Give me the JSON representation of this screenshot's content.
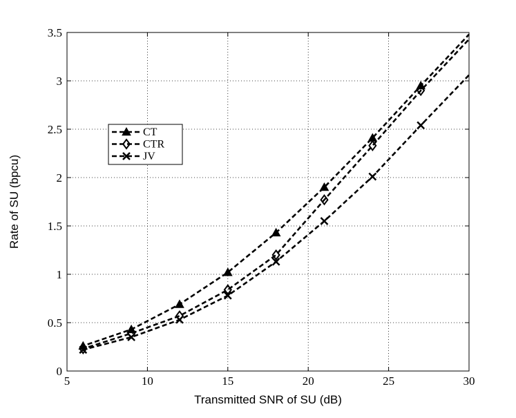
{
  "chart_data": {
    "type": "line",
    "title": "",
    "xlabel": "Transmitted SNR of SU (dB)",
    "ylabel": "Rate of SU (bpcu)",
    "xlim": [
      5,
      30
    ],
    "ylim": [
      0,
      3.5
    ],
    "x_ticks": [
      "5",
      "10",
      "15",
      "20",
      "25",
      "30"
    ],
    "y_ticks": [
      "0",
      "0.5",
      "1",
      "1.5",
      "2",
      "2.5",
      "3",
      "3.5"
    ],
    "grid": true,
    "legend_position": "left",
    "line_style": "dashed",
    "color": "#000000",
    "series": [
      {
        "name": "CT",
        "marker": "triangle",
        "x": [
          6,
          9,
          12,
          15,
          18,
          21,
          24,
          27
        ],
        "y": [
          0.26,
          0.43,
          0.69,
          1.02,
          1.43,
          1.9,
          2.41,
          2.95
        ],
        "curve_x": [
          6,
          30
        ],
        "curve_y": [
          0.23,
          3.48
        ]
      },
      {
        "name": "CTR",
        "marker": "diamond",
        "x": [
          6,
          9,
          12,
          15,
          18,
          21,
          24,
          27
        ],
        "y": [
          0.23,
          0.39,
          0.57,
          0.84,
          1.2,
          1.77,
          2.33,
          2.9
        ],
        "curve_x": [
          6,
          30
        ],
        "curve_y": [
          0.21,
          3.43
        ]
      },
      {
        "name": "JV",
        "marker": "x",
        "x": [
          6,
          9,
          12,
          15,
          18,
          21,
          24,
          27
        ],
        "y": [
          0.22,
          0.35,
          0.53,
          0.78,
          1.13,
          1.55,
          2.01,
          2.54
        ],
        "curve_x": [
          6,
          30
        ],
        "curve_y": [
          0.21,
          3.06
        ]
      }
    ]
  }
}
